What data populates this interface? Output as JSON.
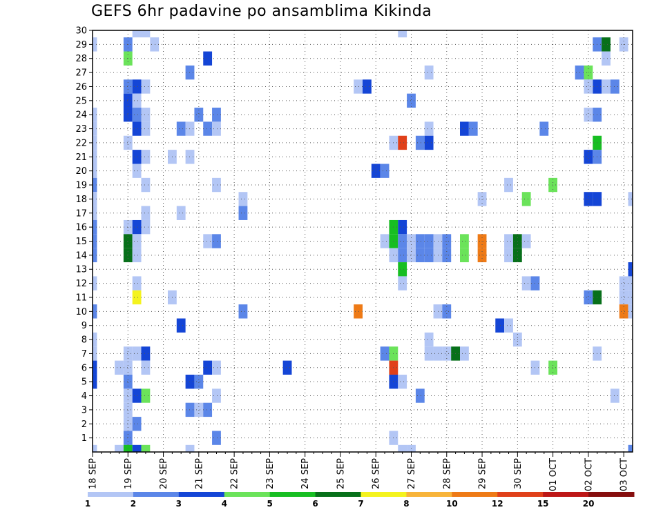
{
  "chart_data": {
    "type": "heatmap",
    "title": "GEFS 6hr padavine po ansamblima Kikinda",
    "x_tick_labels": [
      "18 SEP",
      "19 SEP",
      "20 SEP",
      "21 SEP",
      "22 SEP",
      "23 SEP",
      "24 SEP",
      "25 SEP",
      "26 SEP",
      "27 SEP",
      "28 SEP",
      "29 SEP",
      "30 SEP",
      "01 OCT",
      "02 OCT",
      "03 OCT"
    ],
    "x_range_days": [
      0,
      15.25
    ],
    "x_step_days": 0.25,
    "y_tick_labels": [
      "1",
      "2",
      "3",
      "4",
      "5",
      "6",
      "7",
      "8",
      "9",
      "10",
      "11",
      "12",
      "13",
      "14",
      "15",
      "16",
      "17",
      "18",
      "19",
      "20",
      "21",
      "22",
      "23",
      "24",
      "25",
      "26",
      "27",
      "28",
      "29",
      "30"
    ],
    "y_range": [
      0,
      30
    ],
    "grid": true,
    "colorbar": {
      "position": "bottom",
      "labels": [
        "1",
        "2",
        "3",
        "4",
        "5",
        "6",
        "7",
        "8",
        "10",
        "12",
        "15",
        "20"
      ],
      "colors": [
        "#b3c6f5",
        "#5b86e8",
        "#1445d6",
        "#6be35a",
        "#17be22",
        "#07701a",
        "#f4f31e",
        "#f8b43a",
        "#ee7a16",
        "#e0401a",
        "#bd1717",
        "#860e0e"
      ]
    },
    "cells": [
      [
        0,
        29,
        1
      ],
      [
        0,
        24,
        1
      ],
      [
        0,
        23,
        1
      ],
      [
        0,
        22,
        1
      ],
      [
        0,
        21,
        1
      ],
      [
        0,
        20,
        1
      ],
      [
        0,
        19,
        2
      ],
      [
        0,
        18,
        1
      ],
      [
        0,
        17,
        1
      ],
      [
        0,
        16,
        2
      ],
      [
        0,
        15,
        2
      ],
      [
        0,
        14,
        2
      ],
      [
        0,
        12,
        1
      ],
      [
        0,
        10,
        2
      ],
      [
        0,
        8,
        1
      ],
      [
        0,
        7,
        1
      ],
      [
        0,
        6,
        3
      ],
      [
        0,
        5,
        3
      ],
      [
        0,
        0,
        1
      ],
      [
        0.75,
        6,
        1
      ],
      [
        0.75,
        0,
        1
      ],
      [
        1,
        29,
        2
      ],
      [
        1,
        28,
        4
      ],
      [
        1,
        26,
        2
      ],
      [
        1,
        25,
        3
      ],
      [
        1,
        24,
        3
      ],
      [
        1,
        22,
        1
      ],
      [
        1,
        16,
        1
      ],
      [
        1,
        15,
        6
      ],
      [
        1,
        14,
        6
      ],
      [
        1,
        7,
        1
      ],
      [
        1,
        6,
        1
      ],
      [
        1,
        5,
        2
      ],
      [
        1,
        4,
        1
      ],
      [
        1,
        3,
        1
      ],
      [
        1,
        2,
        1
      ],
      [
        1,
        1,
        2
      ],
      [
        1,
        0,
        5
      ],
      [
        1.25,
        30,
        1
      ],
      [
        1.25,
        26,
        3
      ],
      [
        1.25,
        25,
        1
      ],
      [
        1.25,
        24,
        2
      ],
      [
        1.25,
        23,
        3
      ],
      [
        1.25,
        21,
        3
      ],
      [
        1.25,
        20,
        1
      ],
      [
        1.25,
        16,
        3
      ],
      [
        1.25,
        15,
        1
      ],
      [
        1.25,
        14,
        1
      ],
      [
        1.25,
        12,
        1
      ],
      [
        1.25,
        11,
        7
      ],
      [
        1.25,
        7,
        1
      ],
      [
        1.25,
        4,
        3
      ],
      [
        1.25,
        2,
        2
      ],
      [
        1.25,
        0,
        3
      ],
      [
        1.5,
        30,
        1
      ],
      [
        1.5,
        26,
        1
      ],
      [
        1.5,
        24,
        1
      ],
      [
        1.5,
        23,
        1
      ],
      [
        1.5,
        21,
        1
      ],
      [
        1.5,
        19,
        1
      ],
      [
        1.5,
        17,
        1
      ],
      [
        1.5,
        16,
        1
      ],
      [
        1.5,
        7,
        3
      ],
      [
        1.5,
        6,
        1
      ],
      [
        1.5,
        4,
        4
      ],
      [
        1.5,
        0,
        4
      ],
      [
        1.75,
        29,
        1
      ],
      [
        2.25,
        21,
        1
      ],
      [
        2.25,
        11,
        1
      ],
      [
        2.5,
        23,
        2
      ],
      [
        2.5,
        17,
        1
      ],
      [
        2.5,
        9,
        3
      ],
      [
        2.75,
        27,
        2
      ],
      [
        2.75,
        23,
        1
      ],
      [
        2.75,
        21,
        1
      ],
      [
        2.75,
        5,
        3
      ],
      [
        2.75,
        3,
        2
      ],
      [
        2.75,
        0,
        1
      ],
      [
        3,
        24,
        2
      ],
      [
        3,
        5,
        2
      ],
      [
        3,
        3,
        1
      ],
      [
        3.25,
        28,
        3
      ],
      [
        3.25,
        23,
        2
      ],
      [
        3.25,
        15,
        1
      ],
      [
        3.25,
        6,
        3
      ],
      [
        3.25,
        3,
        2
      ],
      [
        3.5,
        24,
        2
      ],
      [
        3.5,
        23,
        1
      ],
      [
        3.5,
        19,
        1
      ],
      [
        3.5,
        15,
        2
      ],
      [
        3.5,
        6,
        1
      ],
      [
        3.5,
        4,
        1
      ],
      [
        3.5,
        1,
        2
      ],
      [
        4.25,
        18,
        1
      ],
      [
        4.25,
        17,
        2
      ],
      [
        4.25,
        10,
        2
      ],
      [
        5.5,
        6,
        3
      ],
      [
        7.5,
        26,
        1
      ],
      [
        7.5,
        10,
        9
      ],
      [
        7.75,
        26,
        3
      ],
      [
        8,
        20,
        3
      ],
      [
        8.25,
        20,
        2
      ],
      [
        8.25,
        15,
        1
      ],
      [
        8.25,
        7,
        2
      ],
      [
        8.5,
        22,
        1
      ],
      [
        8.5,
        16,
        5
      ],
      [
        8.5,
        15,
        5
      ],
      [
        8.5,
        14,
        1
      ],
      [
        8.5,
        7,
        4
      ],
      [
        8.5,
        6,
        10
      ],
      [
        8.5,
        5,
        3
      ],
      [
        8.5,
        1,
        1
      ],
      [
        8.75,
        30,
        1
      ],
      [
        8.75,
        22,
        10
      ],
      [
        8.75,
        16,
        3
      ],
      [
        8.75,
        15,
        2
      ],
      [
        8.75,
        14,
        2
      ],
      [
        8.75,
        13,
        5
      ],
      [
        8.75,
        12,
        1
      ],
      [
        8.75,
        5,
        1
      ],
      [
        8.75,
        0,
        1
      ],
      [
        9,
        25,
        2
      ],
      [
        9,
        15,
        1
      ],
      [
        9,
        14,
        1
      ],
      [
        9,
        0,
        1
      ],
      [
        9.25,
        22,
        2
      ],
      [
        9.25,
        15,
        2
      ],
      [
        9.25,
        14,
        2
      ],
      [
        9.25,
        4,
        2
      ],
      [
        9.5,
        27,
        1
      ],
      [
        9.5,
        23,
        1
      ],
      [
        9.5,
        22,
        3
      ],
      [
        9.5,
        15,
        2
      ],
      [
        9.5,
        14,
        2
      ],
      [
        9.5,
        8,
        1
      ],
      [
        9.5,
        7,
        1
      ],
      [
        9.75,
        15,
        1
      ],
      [
        9.75,
        14,
        1
      ],
      [
        9.75,
        10,
        1
      ],
      [
        9.75,
        7,
        1
      ],
      [
        10,
        15,
        2
      ],
      [
        10,
        14,
        2
      ],
      [
        10,
        10,
        2
      ],
      [
        10,
        7,
        1
      ],
      [
        10.25,
        7,
        6
      ],
      [
        10.5,
        23,
        3
      ],
      [
        10.5,
        15,
        4
      ],
      [
        10.5,
        14,
        4
      ],
      [
        10.5,
        7,
        1
      ],
      [
        10.75,
        23,
        2
      ],
      [
        11,
        18,
        1
      ],
      [
        11,
        15,
        9
      ],
      [
        11,
        14,
        9
      ],
      [
        11.5,
        9,
        3
      ],
      [
        11.75,
        19,
        1
      ],
      [
        11.75,
        9,
        1
      ],
      [
        11.75,
        15,
        1
      ],
      [
        11.75,
        14,
        1
      ],
      [
        12,
        15,
        6
      ],
      [
        12,
        14,
        6
      ],
      [
        12,
        8,
        1
      ],
      [
        12.25,
        18,
        4
      ],
      [
        12.25,
        15,
        1
      ],
      [
        12.25,
        12,
        1
      ],
      [
        12.5,
        12,
        2
      ],
      [
        12.5,
        6,
        1
      ],
      [
        12.75,
        23,
        2
      ],
      [
        13,
        19,
        4
      ],
      [
        13,
        6,
        4
      ],
      [
        13.75,
        27,
        2
      ],
      [
        14,
        27,
        4
      ],
      [
        14,
        24,
        1
      ],
      [
        14,
        21,
        3
      ],
      [
        14,
        18,
        3
      ],
      [
        14,
        11,
        2
      ],
      [
        14.25,
        29,
        2
      ],
      [
        14.25,
        26,
        3
      ],
      [
        14,
        26,
        1
      ],
      [
        14.25,
        24,
        2
      ],
      [
        14.25,
        22,
        5
      ],
      [
        14.25,
        21,
        2
      ],
      [
        14.25,
        18,
        3
      ],
      [
        14.25,
        11,
        6
      ],
      [
        14.25,
        7,
        1
      ],
      [
        14.5,
        29,
        6
      ],
      [
        14.5,
        28,
        1
      ],
      [
        14.5,
        26,
        1
      ],
      [
        14.75,
        26,
        2
      ],
      [
        14.75,
        4,
        1
      ],
      [
        15,
        29,
        1
      ],
      [
        15,
        12,
        1
      ],
      [
        15,
        11,
        1
      ],
      [
        15,
        10,
        9
      ],
      [
        15.25,
        18,
        1
      ],
      [
        15.25,
        13,
        3
      ],
      [
        15.25,
        12,
        1
      ],
      [
        15.25,
        11,
        1
      ],
      [
        15.25,
        10,
        1
      ],
      [
        15.25,
        0,
        2
      ]
    ]
  }
}
